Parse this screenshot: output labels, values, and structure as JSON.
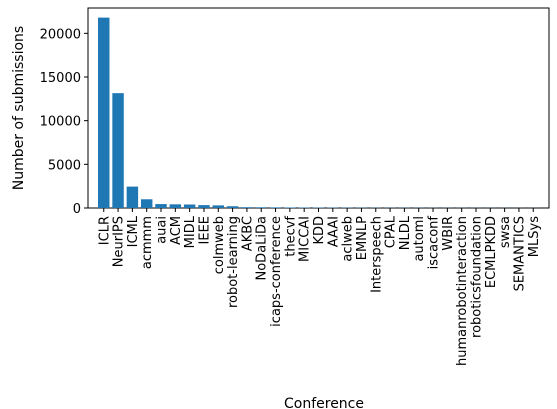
{
  "chart_data": {
    "type": "bar",
    "xlabel": "Conference",
    "ylabel": "Number of submissions",
    "ylim": [
      0,
      22900
    ],
    "yticks": [
      0,
      5000,
      10000,
      15000,
      20000
    ],
    "grid": false,
    "bar_color": "#1f77b4",
    "categories": [
      "ICLR",
      "NeurIPS",
      "ICML",
      "acmmm",
      "auai",
      "ACM",
      "MIDL",
      "IEEE",
      "colmweb",
      "robot-learning",
      "AKBC",
      "NoDaLiDa",
      "icaps-conference",
      "thecvf",
      "MICCAI",
      "KDD",
      "AAAI",
      "aclweb",
      "EMNLP",
      "Interspeech",
      "CPAL",
      "NLDL",
      "automl",
      "iscaconf",
      "WBIR",
      "humanrobotinteraction",
      "roboticsfoundation",
      "ECMLPKDD",
      "swsa",
      "SEMANTICS",
      "MLSys"
    ],
    "values": [
      21800,
      13150,
      2450,
      1000,
      450,
      420,
      400,
      330,
      300,
      200,
      90,
      80,
      70,
      60,
      55,
      50,
      45,
      40,
      35,
      30,
      28,
      26,
      24,
      22,
      20,
      18,
      16,
      14,
      12,
      10,
      8
    ]
  }
}
